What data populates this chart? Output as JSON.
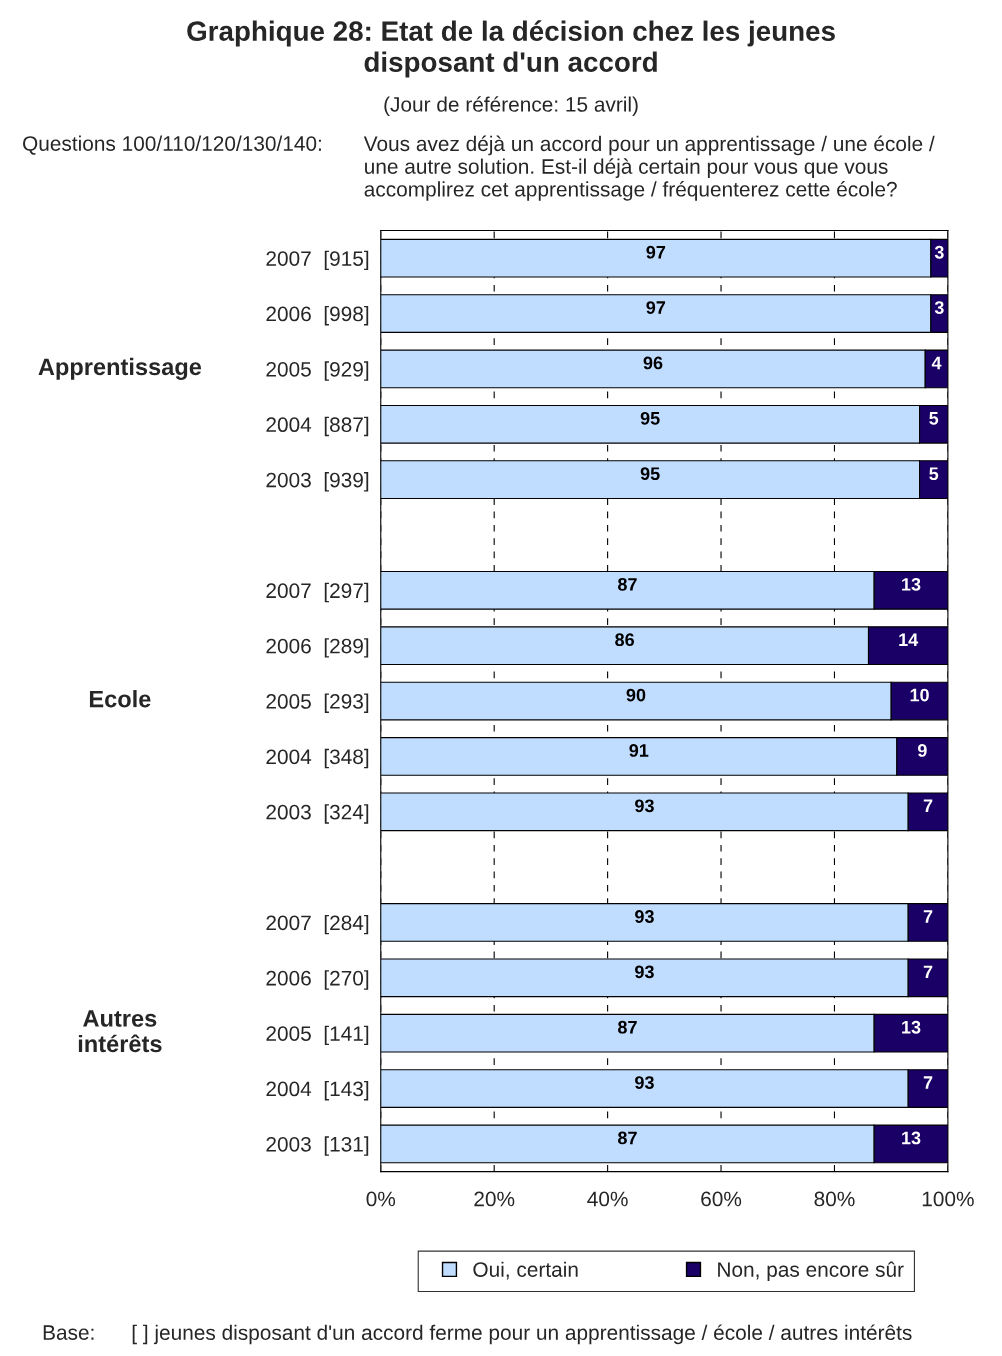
{
  "chart_data": {
    "type": "bar",
    "orientation": "horizontal",
    "stacked": true,
    "title": "Graphique 28: Etat de la décision chez les jeunes\ndisposant d'un accord",
    "subtitle": "(Jour de référence: 15 avril)",
    "categories": [
      "2007  [915]",
      "2006  [998]",
      "2005  [929]",
      "2004  [887]",
      "2003  [939]",
      null,
      "2007  [297]",
      "2006  [289]",
      "2005  [293]",
      "2004  [348]",
      "2003  [324]",
      null,
      "2007  [284]",
      "2006  [270]",
      "2005  [141]",
      "2004  [143]",
      "2003  [131]"
    ],
    "series": [
      {
        "name": "Oui, certain",
        "color": "#c0dcff",
        "values": [
          97,
          97,
          96,
          95,
          95,
          null,
          87,
          86,
          90,
          91,
          93,
          null,
          93,
          93,
          87,
          93,
          87
        ]
      },
      {
        "name": "Non, pas encore sûr",
        "color": "#1a0066",
        "values": [
          3,
          3,
          4,
          5,
          5,
          null,
          13,
          14,
          10,
          9,
          7,
          null,
          7,
          7,
          13,
          7,
          13
        ]
      }
    ],
    "xlim": [
      0,
      100
    ],
    "xticks": [
      {
        "value": 0,
        "label": "0%"
      },
      {
        "value": 20,
        "label": "20%"
      },
      {
        "value": 40,
        "label": "40%"
      },
      {
        "value": 60,
        "label": "60%"
      },
      {
        "value": 80,
        "label": "80%"
      },
      {
        "value": 100,
        "label": "100%"
      }
    ],
    "grid": "x",
    "legend": "bottom",
    "data_labels": true,
    "annotations": [
      "Questions 100/110/120/130/140:",
      "Vous avez déjà un accord pour un apprentissage / une école /\nune autre solution. Est-il déjà certain pour vous que vous\naccomplirez cet apprentissage / fréquenterez cette école?",
      "Apprentissage",
      "Ecole",
      "Autres\nintérêts",
      "Base:",
      "[ ] jeunes disposant d'un accord ferme pour un apprentissage / école / autres intérêts"
    ]
  }
}
